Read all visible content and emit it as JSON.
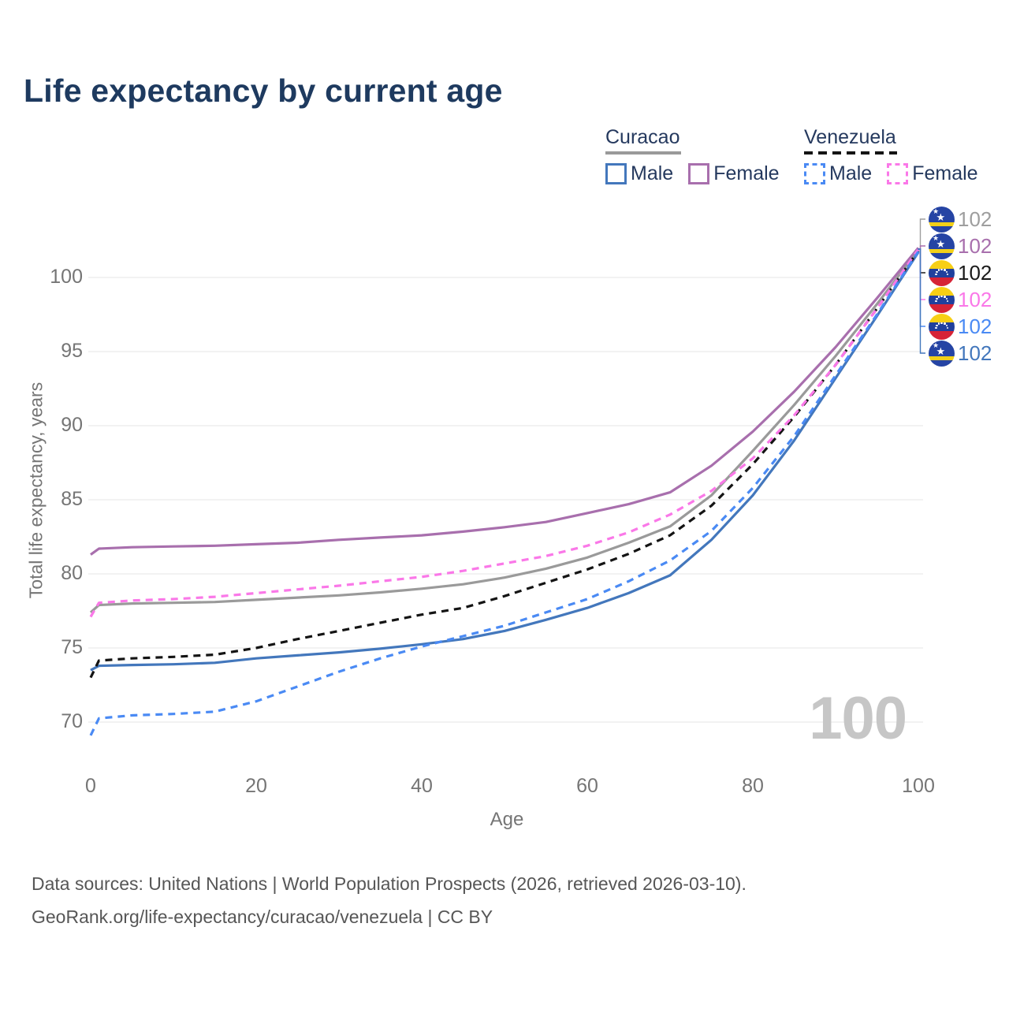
{
  "header": {
    "title": "Life expectancy by current age"
  },
  "legend": {
    "groups": [
      {
        "name": "Curacao",
        "line_style": "solid",
        "line_color": "#9a9a9a",
        "items": [
          {
            "label": "Male",
            "color": "#4377bc",
            "dash": "solid"
          },
          {
            "label": "Female",
            "color": "#a86fad",
            "dash": "solid"
          }
        ]
      },
      {
        "name": "Venezuela",
        "line_style": "dashed",
        "line_color": "#141414",
        "items": [
          {
            "label": "Male",
            "color": "#4a8af4",
            "dash": "dashed"
          },
          {
            "label": "Female",
            "color": "#fa78e8",
            "dash": "dashed"
          }
        ]
      }
    ]
  },
  "chart_data": {
    "type": "line",
    "title": "Life expectancy by current age",
    "xlabel": "Age",
    "ylabel": "Total life expectancy, years",
    "grid": "horizontal",
    "xlim": [
      0,
      100
    ],
    "ylim": [
      68.5,
      103
    ],
    "xticks": [
      0,
      20,
      40,
      60,
      80,
      100
    ],
    "yticks": [
      70,
      75,
      80,
      85,
      90,
      95,
      100
    ],
    "x": [
      0,
      1,
      5,
      10,
      15,
      20,
      25,
      30,
      35,
      40,
      45,
      50,
      55,
      60,
      65,
      70,
      75,
      80,
      85,
      90,
      95,
      100
    ],
    "series": [
      {
        "name": "Curacao",
        "sex": "both",
        "color": "#9a9a9a",
        "dash": "solid",
        "values": [
          77.4,
          77.9,
          78.0,
          78.05,
          78.1,
          78.25,
          78.4,
          78.55,
          78.75,
          79.0,
          79.3,
          79.75,
          80.35,
          81.1,
          82.1,
          83.2,
          85.3,
          88.3,
          91.4,
          94.7,
          98.2,
          101.85
        ]
      },
      {
        "name": "Curacao Female",
        "sex": "female",
        "color": "#a86fad",
        "dash": "solid",
        "values": [
          81.3,
          81.7,
          81.8,
          81.85,
          81.9,
          82.0,
          82.1,
          82.3,
          82.45,
          82.6,
          82.85,
          83.15,
          83.5,
          84.1,
          84.7,
          85.5,
          87.3,
          89.6,
          92.3,
          95.3,
          98.6,
          102.0
        ]
      },
      {
        "name": "Curacao Male",
        "sex": "male",
        "color": "#4377bc",
        "dash": "solid",
        "values": [
          73.5,
          73.8,
          73.85,
          73.9,
          74.0,
          74.3,
          74.5,
          74.7,
          74.95,
          75.25,
          75.6,
          76.15,
          76.9,
          77.7,
          78.7,
          79.9,
          82.3,
          85.3,
          89.0,
          93.2,
          97.4,
          101.7
        ]
      },
      {
        "name": "Venezuela",
        "sex": "both",
        "color": "#141414",
        "dash": "dashed",
        "values": [
          73.0,
          74.15,
          74.3,
          74.4,
          74.55,
          75.0,
          75.6,
          76.15,
          76.7,
          77.25,
          77.7,
          78.5,
          79.4,
          80.3,
          81.35,
          82.6,
          84.6,
          87.4,
          90.6,
          94.1,
          97.9,
          101.8
        ]
      },
      {
        "name": "Venezuela Female",
        "sex": "female",
        "color": "#fa78e8",
        "dash": "dashed",
        "values": [
          77.1,
          78.05,
          78.2,
          78.3,
          78.45,
          78.7,
          78.95,
          79.2,
          79.5,
          79.8,
          80.2,
          80.7,
          81.2,
          81.9,
          82.8,
          84.0,
          85.6,
          87.8,
          90.7,
          94.1,
          97.9,
          101.9
        ]
      },
      {
        "name": "Venezuela Male",
        "sex": "male",
        "color": "#4a8af4",
        "dash": "dashed",
        "values": [
          69.1,
          70.25,
          70.45,
          70.55,
          70.7,
          71.4,
          72.4,
          73.4,
          74.3,
          75.1,
          75.8,
          76.5,
          77.4,
          78.3,
          79.5,
          80.9,
          82.9,
          85.8,
          89.3,
          93.4,
          97.5,
          101.75
        ]
      }
    ],
    "end_labels": [
      {
        "flag": "curacao",
        "value": "102",
        "color": "#9e9e9e",
        "series": "Curacao"
      },
      {
        "flag": "curacao",
        "value": "102",
        "color": "#a86fad",
        "series": "Curacao Female"
      },
      {
        "flag": "venezuela",
        "value": "102",
        "color": "#1a1a1a",
        "series": "Venezuela"
      },
      {
        "flag": "venezuela",
        "value": "102",
        "color": "#fa78e8",
        "series": "Venezuela Female"
      },
      {
        "flag": "venezuela",
        "value": "102",
        "color": "#4a8af4",
        "series": "Venezuela Male"
      },
      {
        "flag": "curacao",
        "value": "102",
        "color": "#4377bc",
        "series": "Curacao Male"
      }
    ],
    "watermark": "100"
  },
  "footer": {
    "line1": "Data sources: United Nations | World Population Prospects (2026, retrieved 2026-03-10).",
    "line2": "GeoRank.org/life-expectancy/curacao/venezuela | CC BY"
  }
}
